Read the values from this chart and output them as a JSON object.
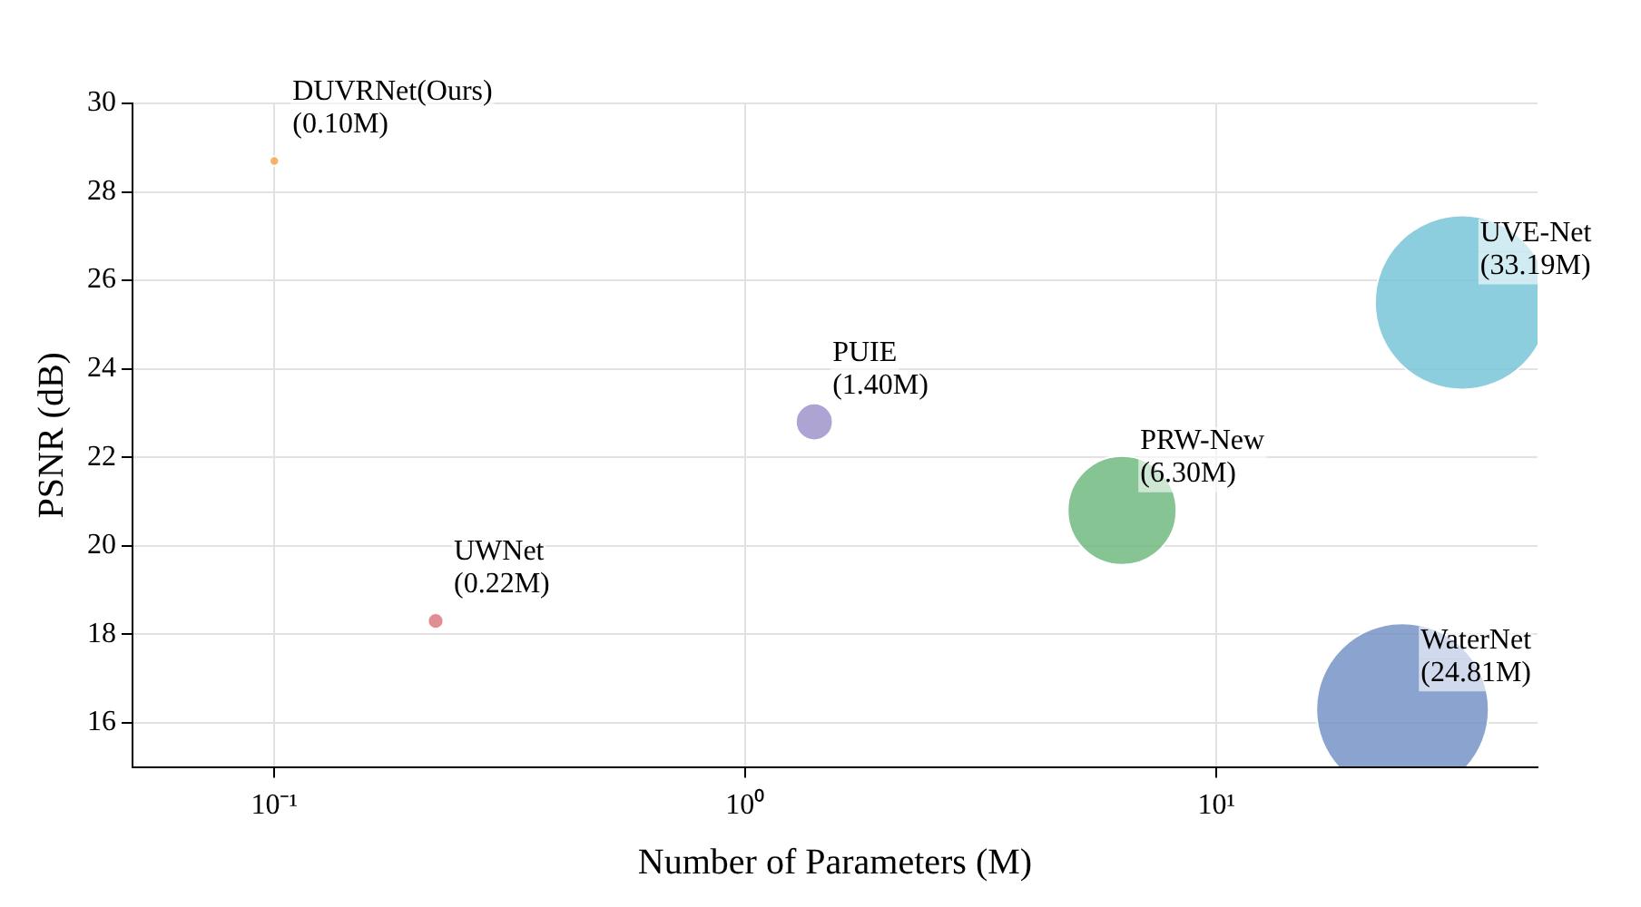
{
  "chart_data": {
    "type": "bubble",
    "xlabel": "Number of Parameters (M)",
    "ylabel": "PSNR (dB)",
    "log": "x",
    "xlim": [
      0.05,
      48
    ],
    "ylim": [
      15,
      30
    ],
    "xticks": [
      {
        "value": 0.1,
        "label": "10⁻¹"
      },
      {
        "value": 1,
        "label": "10⁰"
      },
      {
        "value": 10,
        "label": "10¹"
      }
    ],
    "yticks": [
      16,
      18,
      20,
      22,
      24,
      26,
      28,
      30
    ],
    "grid": true,
    "legend": false,
    "series": [
      {
        "name": "DUVRNet(Ours)",
        "color": "#f5a04a",
        "x": [
          0.1
        ],
        "values": [
          28.7
        ],
        "sizes": [
          0.003
        ]
      },
      {
        "name": "UWNet",
        "color": "#d9737a",
        "x": [
          0.22
        ],
        "values": [
          18.3
        ],
        "sizes": [
          0.008
        ]
      },
      {
        "name": "PUIE",
        "color": "#9b8fc9",
        "x": [
          1.4
        ],
        "values": [
          22.8
        ],
        "sizes": [
          0.045
        ]
      },
      {
        "name": "PRW-New",
        "color": "#6bb77b",
        "x": [
          6.3
        ],
        "values": [
          20.8
        ],
        "sizes": [
          0.39
        ]
      },
      {
        "name": "UVE-Net",
        "color": "#72c2d6",
        "x": [
          33.19
        ],
        "values": [
          25.5
        ],
        "sizes": [
          1
        ]
      },
      {
        "name": "WaterNet",
        "color": "#6f8fc4",
        "x": [
          24.81
        ],
        "values": [
          16.3
        ],
        "sizes": [
          0.98
        ]
      }
    ],
    "annotations": [
      {
        "text": "(0.10M)",
        "x": 0.1,
        "y": 28.7
      },
      {
        "text": "(0.22M)",
        "x": 0.22,
        "y": 18.3
      },
      {
        "text": "(1.40M)",
        "x": 1.4,
        "y": 22.8
      },
      {
        "text": "(6.30M)",
        "x": 6.3,
        "y": 20.8
      },
      {
        "text": "(33.19M)",
        "x": 33.19,
        "y": 25.5
      },
      {
        "text": "(24.81M)",
        "x": 24.81,
        "y": 16.3
      }
    ]
  }
}
